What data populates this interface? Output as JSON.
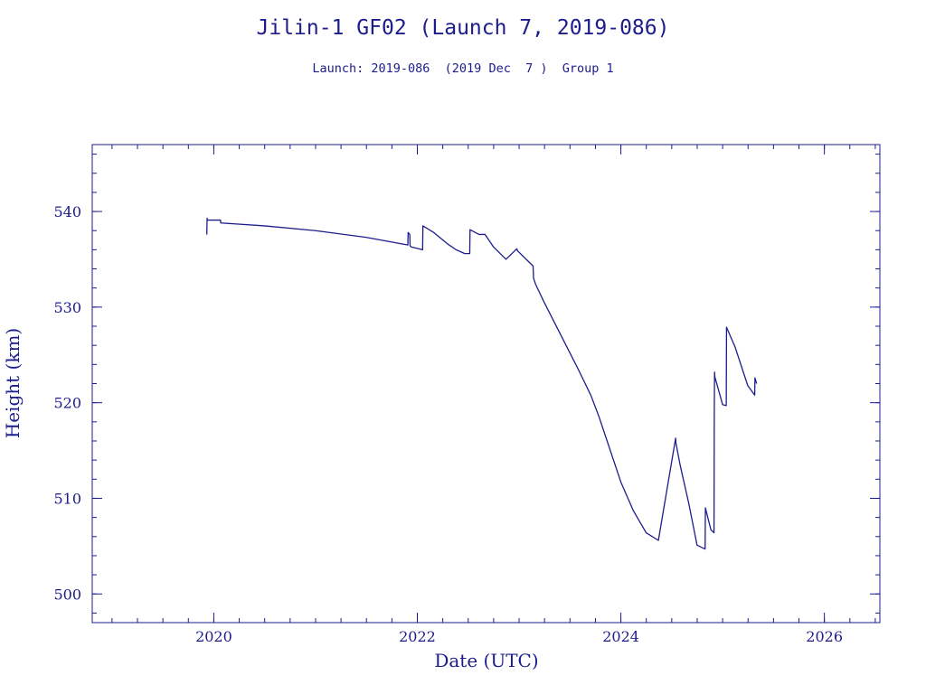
{
  "colors": {
    "ink": "#1c1c8c",
    "background": "#ffffff"
  },
  "chart_data": {
    "type": "line",
    "title": "Jilin-1 GF02 (Launch 7, 2019-086)",
    "subtitle": "Launch: 2019-086  (2019 Dec  7 )  Group 1",
    "xlabel": "Date (UTC)",
    "ylabel": "Height (km)",
    "xlim": [
      "2018-10-22",
      "2026-07-19"
    ],
    "ylim": [
      497,
      547
    ],
    "x_ticks": [
      "2020",
      "2022",
      "2024",
      "2026"
    ],
    "y_ticks": [
      "500",
      "510",
      "520",
      "530",
      "540"
    ],
    "grid": false,
    "series": [
      {
        "x": [
          "2019-12-07",
          "2019-12-08",
          "2019-12-09",
          "2020-01-25",
          "2020-01-26",
          "2020-01-27",
          "2020-07-01",
          "2021-01-01",
          "2021-07-01",
          "2021-11-28",
          "2021-11-29",
          "2021-12-05",
          "2021-12-06",
          "2021-12-10",
          "2022-01-20",
          "2022-01-21",
          "2022-03-01",
          "2022-04-20",
          "2022-05-20",
          "2022-06-20",
          "2022-07-08",
          "2022-07-09",
          "2022-08-10",
          "2022-09-01",
          "2022-10-01",
          "2022-11-15",
          "2022-12-24",
          "2022-12-26",
          "2023-02-20",
          "2023-02-22",
          "2023-03-01",
          "2023-04-01",
          "2023-06-01",
          "2023-08-01",
          "2023-09-15",
          "2023-10-15",
          "2024-01-01",
          "2024-02-15",
          "2024-04-01",
          "2024-05-15",
          "2024-07-16",
          "2024-07-17",
          "2024-08-01",
          "2024-09-01",
          "2024-10-01",
          "2024-10-30",
          "2024-10-31",
          "2024-11-20",
          "2024-12-01",
          "2024-12-02",
          "2024-12-03",
          "2024-12-04",
          "2025-01-01",
          "2025-01-14",
          "2025-01-15",
          "2025-02-15",
          "2025-04-01",
          "2025-04-26",
          "2025-04-27",
          "2025-05-03"
        ],
        "y": [
          537.6,
          539.3,
          539.1,
          539.1,
          538.8,
          538.8,
          538.5,
          538.0,
          537.3,
          536.5,
          537.8,
          537.6,
          536.4,
          536.3,
          536.0,
          538.5,
          537.8,
          536.6,
          536.0,
          535.6,
          535.6,
          538.1,
          537.6,
          537.6,
          536.3,
          535.0,
          536.1,
          535.9,
          534.3,
          533.0,
          532.4,
          530.5,
          527.0,
          523.5,
          520.8,
          518.5,
          511.7,
          508.7,
          506.4,
          505.6,
          516.3,
          515.8,
          513.5,
          509.5,
          505.1,
          504.7,
          509.0,
          506.7,
          506.4,
          519.0,
          523.2,
          522.7,
          519.8,
          519.7,
          527.9,
          525.8,
          521.8,
          520.8,
          522.6,
          522.0
        ]
      }
    ]
  }
}
